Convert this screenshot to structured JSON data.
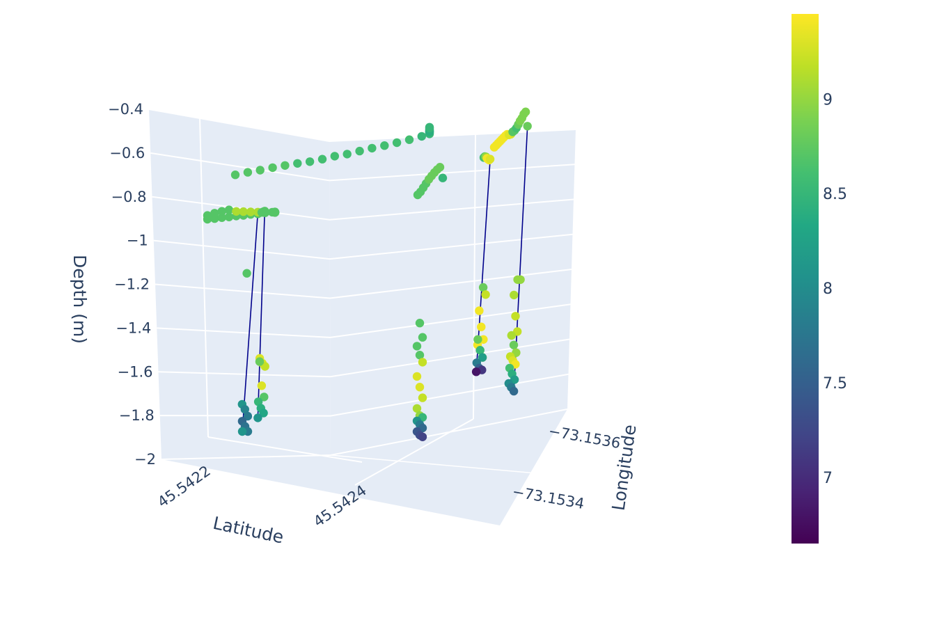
{
  "chart_data": {
    "type": "scatter3d",
    "axes": {
      "x": {
        "title": "Latitude",
        "ticks": [
          "45.5422",
          "45.5424"
        ]
      },
      "y": {
        "title": "Longitude",
        "ticks": [
          "−73.1536",
          "−73.1534"
        ]
      },
      "z": {
        "title": "Depth (m)",
        "ticks": [
          "−0.4",
          "−0.6",
          "−0.8",
          "−1",
          "−1.2",
          "−1.4",
          "−1.6",
          "−1.8",
          "−2"
        ],
        "range": [
          -2.0,
          -0.4
        ]
      }
    },
    "colorbar": {
      "colorscale": "Viridis",
      "range": [
        6.65,
        9.45
      ],
      "ticks": [
        "9",
        "8.5",
        "8",
        "7.5",
        "7"
      ]
    },
    "marker_color_hex": [
      "#440154",
      "#3b528b",
      "#21918c",
      "#5ec962",
      "#fde725"
    ],
    "line_color": "#00008b",
    "segments": [
      {
        "ground": "A",
        "points": [
          [
            8.7,
            -0.85
          ],
          [
            8.7,
            -0.85
          ],
          [
            8.7,
            -0.84
          ],
          [
            8.7,
            -0.84
          ],
          [
            8.7,
            -0.83
          ],
          [
            8.7,
            -0.83
          ],
          [
            8.7,
            -0.82
          ],
          [
            8.7,
            -0.82
          ],
          [
            8.7,
            -0.81
          ],
          [
            8.7,
            -0.81
          ],
          [
            8.7,
            -0.82
          ],
          [
            8.7,
            -0.82
          ],
          [
            8.7,
            -0.81
          ],
          [
            8.7,
            -0.81
          ],
          [
            8.7,
            -0.82
          ],
          [
            8.7,
            -0.82
          ]
        ]
      },
      {
        "ground": "A",
        "line": true,
        "points": [
          [
            8.7,
            -0.76
          ],
          [
            8.7,
            -0.72
          ],
          [
            8.7,
            -0.69
          ],
          [
            8.7,
            -0.67
          ],
          [
            9.1,
            -0.72
          ],
          [
            9.1,
            -0.74
          ],
          [
            9.1,
            -0.76
          ],
          [
            9.1,
            -0.78
          ],
          [
            8.7,
            -1.02
          ],
          [
            8.1,
            -1.79
          ],
          [
            7.9,
            -1.82
          ],
          [
            7.8,
            -1.86
          ],
          [
            7.6,
            -1.89
          ],
          [
            7.7,
            -1.92
          ],
          [
            7.8,
            -1.95
          ],
          [
            8.1,
            -1.95
          ]
        ]
      },
      {
        "ground": "B",
        "line": true,
        "points": [
          [
            8.7,
            -0.82
          ],
          [
            8.7,
            -0.8
          ],
          [
            8.7,
            -0.78
          ],
          [
            9.3,
            -1.53
          ],
          [
            9.3,
            -1.56
          ],
          [
            9.2,
            -1.58
          ],
          [
            8.8,
            -1.55
          ],
          [
            9.3,
            -1.7
          ],
          [
            8.7,
            -1.77
          ],
          [
            8.5,
            -1.8
          ],
          [
            8.4,
            -1.84
          ],
          [
            8.3,
            -1.87
          ],
          [
            8.1,
            -1.9
          ]
        ]
      },
      {
        "ground": "C",
        "points": [
          [
            8.7,
            -0.67
          ],
          [
            8.7,
            -0.67
          ],
          [
            8.7,
            -0.68
          ],
          [
            8.7,
            -0.68
          ],
          [
            8.7,
            -0.69
          ],
          [
            8.6,
            -0.7
          ],
          [
            8.6,
            -0.72
          ],
          [
            8.6,
            -0.72
          ],
          [
            8.6,
            -0.71
          ],
          [
            8.6,
            -0.72
          ],
          [
            8.6,
            -0.71
          ],
          [
            8.6,
            -0.7
          ],
          [
            8.6,
            -0.7
          ],
          [
            8.6,
            -0.69
          ],
          [
            8.6,
            -0.68
          ],
          [
            8.5,
            -0.66
          ],
          [
            8.5,
            -0.64
          ],
          [
            8.5,
            -0.62
          ],
          [
            8.5,
            -0.6
          ],
          [
            8.4,
            -0.59
          ],
          [
            8.4,
            -0.58
          ],
          [
            8.4,
            -0.57
          ],
          [
            8.4,
            -0.55
          ],
          [
            8.4,
            -0.53
          ],
          [
            8.5,
            -0.5
          ],
          [
            8.5,
            -0.48
          ]
        ]
      },
      {
        "ground": "D",
        "points": [
          [
            8.7,
            -0.75
          ],
          [
            8.7,
            -0.74
          ],
          [
            8.7,
            -0.7
          ],
          [
            8.7,
            -0.66
          ],
          [
            8.8,
            -0.62
          ],
          [
            8.8,
            -0.6
          ],
          [
            8.8,
            -0.58
          ],
          [
            8.8,
            -0.57
          ],
          [
            8.8,
            -0.57
          ],
          [
            8.5,
            -0.89
          ],
          [
            8.7,
            -1.36
          ],
          [
            8.7,
            -1.44
          ],
          [
            8.7,
            -1.49
          ],
          [
            8.7,
            -1.54
          ],
          [
            9.2,
            -1.58
          ],
          [
            9.3,
            -1.66
          ],
          [
            9.3,
            -1.72
          ],
          [
            9.2,
            -1.78
          ],
          [
            9.1,
            -1.84
          ],
          [
            9.0,
            -1.88
          ],
          [
            8.5,
            -1.89
          ],
          [
            8.1,
            -1.91
          ],
          [
            7.8,
            -1.93
          ],
          [
            7.6,
            -1.95
          ],
          [
            7.4,
            -1.97
          ],
          [
            7.3,
            -1.99
          ],
          [
            7.2,
            -2.0
          ]
        ]
      },
      {
        "ground": "E",
        "line": true,
        "points": [
          [
            8.6,
            -0.54
          ],
          [
            8.7,
            -0.53
          ],
          [
            9.0,
            -0.55
          ],
          [
            9.4,
            -0.6
          ],
          [
            9.4,
            -0.64
          ],
          [
            9.4,
            -0.67
          ],
          [
            9.3,
            -0.66
          ],
          [
            8.8,
            -1.31
          ],
          [
            9.2,
            -1.35
          ],
          [
            9.4,
            -1.44
          ],
          [
            9.4,
            -1.53
          ],
          [
            9.4,
            -1.6
          ],
          [
            9.4,
            -1.63
          ],
          [
            9.4,
            -1.66
          ],
          [
            9.4,
            -1.7
          ],
          [
            8.8,
            -1.6
          ],
          [
            8.5,
            -1.66
          ],
          [
            8.2,
            -1.7
          ],
          [
            7.8,
            -1.73
          ],
          [
            7.5,
            -1.76
          ],
          [
            7.1,
            -1.77
          ],
          [
            6.8,
            -1.78
          ]
        ]
      },
      {
        "ground": "F",
        "line": true,
        "points": [
          [
            9.4,
            -0.56
          ],
          [
            9.4,
            -0.55
          ],
          [
            9.4,
            -0.54
          ],
          [
            9.4,
            -0.53
          ],
          [
            9.4,
            -0.52
          ],
          [
            9.4,
            -0.51
          ],
          [
            9.4,
            -0.5
          ],
          [
            9.4,
            -0.5
          ],
          [
            9.3,
            -0.55
          ],
          [
            9.3,
            -0.57
          ],
          [
            8.7,
            -0.55
          ],
          [
            8.7,
            -0.55
          ],
          [
            8.6,
            -0.53
          ],
          [
            8.8,
            -0.48
          ],
          [
            8.9,
            -0.43
          ],
          [
            8.9,
            -0.4
          ],
          [
            8.9,
            -0.34
          ],
          [
            8.9,
            -0.32
          ],
          [
            8.8,
            -0.7
          ],
          [
            9.0,
            -1.24
          ],
          [
            9.0,
            -1.24
          ],
          [
            9.1,
            -1.32
          ],
          [
            9.2,
            -1.43
          ],
          [
            9.2,
            -1.51
          ],
          [
            9.1,
            -1.53
          ],
          [
            8.8,
            -1.58
          ],
          [
            9.0,
            -1.62
          ],
          [
            9.2,
            -1.64
          ],
          [
            9.3,
            -1.66
          ],
          [
            9.4,
            -1.68
          ],
          [
            8.6,
            -1.7
          ],
          [
            8.4,
            -1.73
          ],
          [
            8.2,
            -1.76
          ],
          [
            8.0,
            -1.78
          ],
          [
            7.8,
            -1.8
          ],
          [
            7.6,
            -1.82
          ]
        ]
      }
    ]
  }
}
